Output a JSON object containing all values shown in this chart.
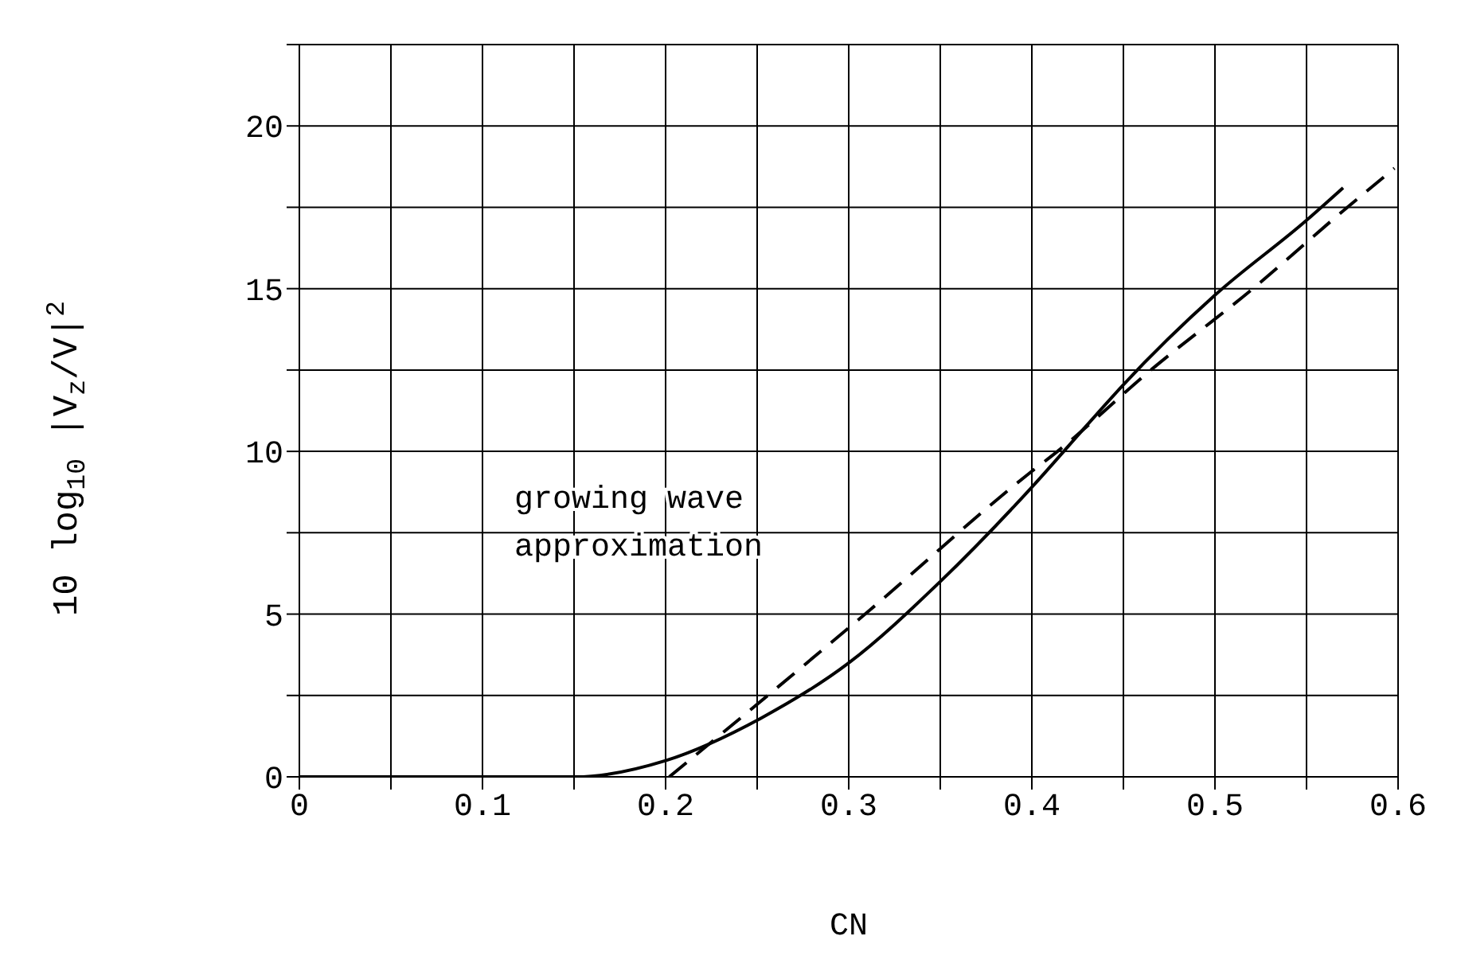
{
  "chart_data": {
    "type": "line",
    "xlabel": "CN",
    "ylabel": "10 log$_{10}$ |V$_{z}$/V|$^{2}$",
    "annotations": [
      "growing wave\napproximation"
    ],
    "xlim": [
      0,
      0.6
    ],
    "xticks": [
      0,
      {
        "value": 0.05,
        "label": null
      },
      {
        "value": 0.1,
        "label": "0.1"
      },
      {
        "value": 0.15,
        "label": null
      },
      {
        "value": 0.2,
        "label": "0.2"
      },
      {
        "value": 0.25,
        "label": null
      },
      {
        "value": 0.3,
        "label": "0.3"
      },
      {
        "value": 0.35,
        "label": null
      },
      {
        "value": 0.4,
        "label": "0.4"
      },
      {
        "value": 0.45,
        "label": null
      },
      {
        "value": 0.5,
        "label": "0.5"
      },
      {
        "value": 0.55,
        "label": null
      },
      {
        "value": 0.6,
        "label": "0.6"
      }
    ],
    "ylim": [
      0,
      22.5
    ],
    "yticks": [
      0,
      {
        "value": 2.5,
        "label": null
      },
      5,
      {
        "value": 7.5,
        "label": null
      },
      10,
      {
        "value": 12.5,
        "label": null
      },
      15,
      {
        "value": 17.5,
        "label": null
      },
      20,
      {
        "value": 22.5,
        "label": null
      }
    ],
    "grid": true,
    "legend": false,
    "marker": "none",
    "series": [
      {
        "color": "#000000",
        "line_style": "solid",
        "x": [
          0,
          0.151,
          0.2,
          0.252,
          0.3,
          0.35,
          0.4,
          0.43,
          0.45,
          0.5,
          0.55,
          0.57
        ],
        "values": [
          0,
          0,
          0.5,
          1.8,
          3.5,
          6.0,
          8.9,
          10.8,
          12.05,
          14.8,
          17.1,
          18.1
        ]
      },
      {
        "color": "#000000",
        "line_style": "dashed",
        "x": [
          0.202,
          0.244,
          0.311,
          0.398,
          0.414,
          0.465,
          0.522,
          0.566,
          0.598
        ],
        "values": [
          0,
          1.95,
          5.1,
          9.3,
          10,
          12.5,
          15.06,
          17.2,
          18.7
        ]
      }
    ]
  }
}
